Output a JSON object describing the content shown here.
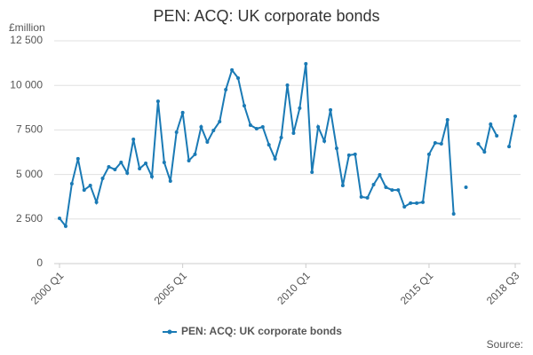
{
  "chart_data": {
    "type": "line",
    "title": "PEN: ACQ: UK corporate bonds",
    "y_unit": "£million",
    "source": "Source:",
    "categories": [
      "2000 Q1",
      null,
      null,
      null,
      null,
      null,
      null,
      null,
      null,
      null,
      null,
      null,
      null,
      null,
      null,
      null,
      null,
      null,
      null,
      null,
      "2005 Q1",
      null,
      null,
      null,
      null,
      null,
      null,
      null,
      null,
      null,
      null,
      null,
      null,
      null,
      null,
      null,
      null,
      null,
      null,
      null,
      "2010 Q1",
      null,
      null,
      null,
      null,
      null,
      null,
      null,
      null,
      null,
      null,
      null,
      null,
      null,
      null,
      null,
      null,
      null,
      null,
      null,
      "2015 Q1",
      null,
      null,
      null,
      null,
      null,
      null,
      null,
      null,
      null,
      null,
      null,
      null,
      null,
      "2018 Q3"
    ],
    "series": [
      {
        "name": "PEN: ACQ: UK corporate bonds",
        "color": "#1a7ab5",
        "values": [
          2540,
          2100,
          4480,
          5880,
          4130,
          4380,
          3440,
          4780,
          5430,
          5280,
          5680,
          5080,
          6970,
          5330,
          5630,
          4880,
          9110,
          5680,
          4630,
          7370,
          8470,
          5780,
          6130,
          7670,
          6820,
          7470,
          7970,
          9760,
          10860,
          10410,
          8860,
          7770,
          7570,
          7670,
          6670,
          5880,
          7070,
          10010,
          7320,
          8720,
          11210,
          5130,
          7670,
          6870,
          8620,
          6470,
          4380,
          6080,
          6130,
          3740,
          3690,
          4430,
          4980,
          4280,
          4130,
          4130,
          3190,
          3390,
          3390,
          3440,
          6130,
          6770,
          6720,
          8070,
          2790,
          null,
          4280,
          null,
          6720,
          6270,
          7820,
          7170,
          null,
          6570,
          8270
        ]
      }
    ],
    "ylim": [
      0,
      12500
    ],
    "yticks": [
      0,
      {
        "value": 2500,
        "label": "2 500"
      },
      {
        "value": 5000,
        "label": "5 000"
      },
      {
        "value": 7500,
        "label": "7 500"
      },
      {
        "value": 10000,
        "label": "10 000"
      },
      {
        "value": 12500,
        "label": "12 500"
      }
    ],
    "grid": true
  }
}
